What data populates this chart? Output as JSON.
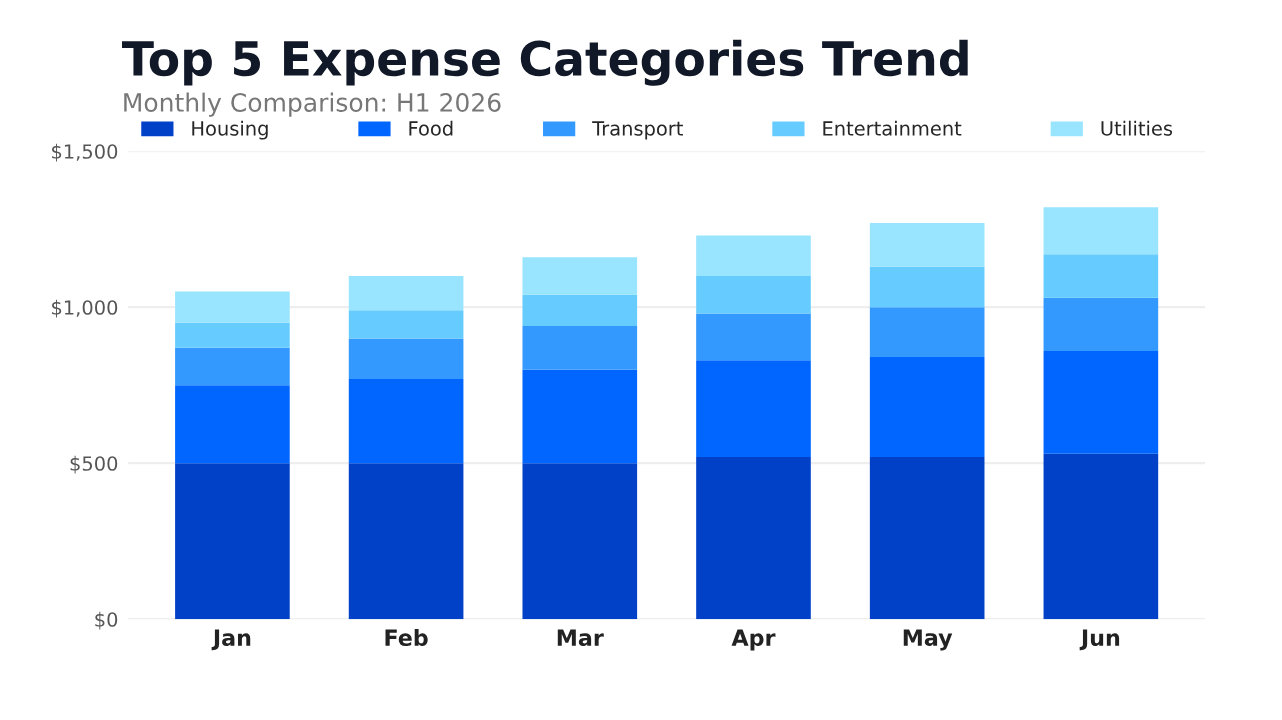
{
  "chart_data": {
    "type": "bar",
    "title": "Top 5 Expense Categories Trend",
    "subtitle": "Monthly Comparison: H1 2026",
    "stacked": true,
    "categories": [
      "Jan",
      "Feb",
      "Mar",
      "Apr",
      "May",
      "Jun"
    ],
    "series": [
      {
        "name": "Housing",
        "color": "#0041c8",
        "values": [
          500,
          500,
          500,
          520,
          520,
          530
        ]
      },
      {
        "name": "Food",
        "color": "#0066ff",
        "values": [
          250,
          270,
          300,
          310,
          320,
          330
        ]
      },
      {
        "name": "Transport",
        "color": "#3399ff",
        "values": [
          120,
          130,
          140,
          150,
          160,
          170
        ]
      },
      {
        "name": "Entertainment",
        "color": "#66ccff",
        "values": [
          80,
          90,
          100,
          120,
          130,
          140
        ]
      },
      {
        "name": "Utilities",
        "color": "#99e5ff",
        "values": [
          100,
          110,
          120,
          130,
          140,
          150
        ]
      }
    ],
    "ylim": [
      0,
      1500
    ],
    "yticks": [
      {
        "value": 0,
        "label": "$0"
      },
      {
        "value": 500,
        "label": "$500"
      },
      {
        "value": 1000,
        "label": "$1,000"
      },
      {
        "value": 1500,
        "label": "$1,500"
      }
    ],
    "grid": "y",
    "legend": "top left"
  }
}
